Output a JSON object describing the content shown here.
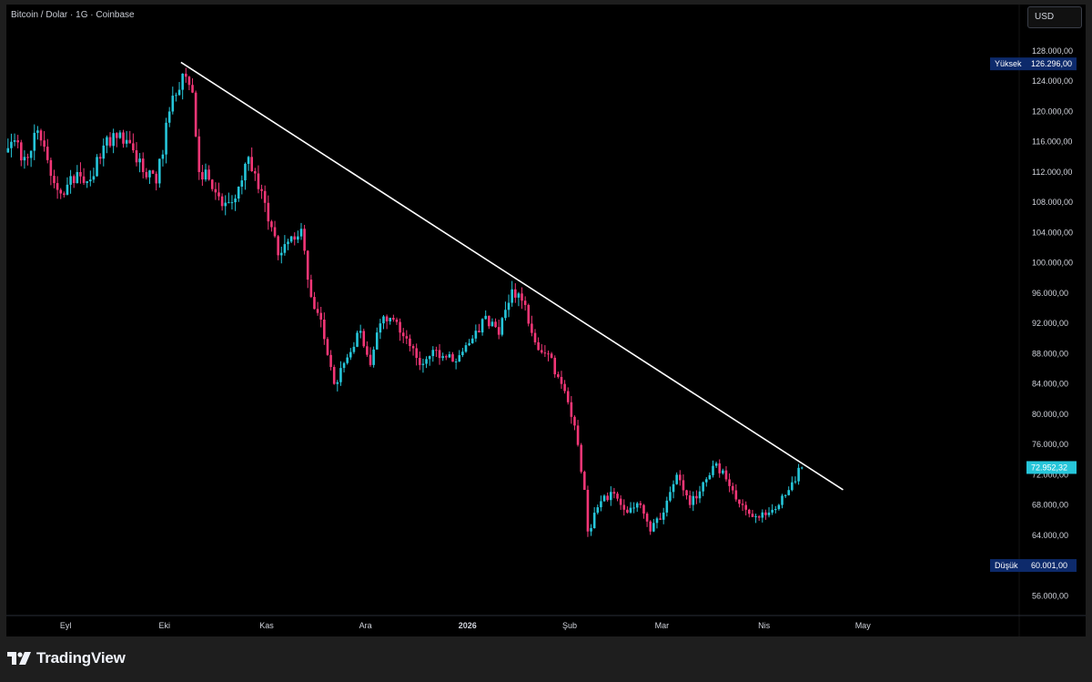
{
  "header": {
    "title": "Bitcoin / Dolar · 1G · Coinbase",
    "currency_button": "USD"
  },
  "footer": {
    "brand": "TradingView"
  },
  "colors": {
    "up": "#26c6da",
    "down": "#f23676",
    "trendline": "#ffffff",
    "last_price_tag": "#26c6da",
    "hl_tag": "#0d2a6b"
  },
  "chart_data": {
    "type": "candlestick",
    "ylim": [
      53000,
      131000
    ],
    "y_ticks": [
      "128.000,00",
      "124.000,00",
      "120.000,00",
      "116.000,00",
      "112.000,00",
      "108.000,00",
      "104.000,00",
      "100.000,00",
      "96.000,00",
      "92.000,00",
      "88.000,00",
      "84.000,00",
      "80.000,00",
      "76.000,00",
      "72.000,00",
      "68.000,00",
      "64.000,00",
      "56.000,00"
    ],
    "y_tick_values": [
      128000,
      124000,
      120000,
      116000,
      112000,
      108000,
      104000,
      100000,
      96000,
      92000,
      88000,
      84000,
      80000,
      76000,
      72000,
      68000,
      64000,
      56000
    ],
    "x_ticks": [
      "Eyl",
      "Eki",
      "Kas",
      "Ara",
      "2026",
      "Şub",
      "Mar",
      "Nis",
      "May"
    ],
    "high_tag": {
      "label": "Yüksek",
      "value_text": "126.296,00",
      "value": 126296
    },
    "low_tag": {
      "label": "Düşük",
      "value_text": "60.001,00",
      "value": 60001
    },
    "last_price": {
      "value_text": "72.952,32",
      "value": 72952.32
    },
    "trendline": {
      "start": {
        "date": "2025-10-06",
        "price": 126500
      },
      "end": {
        "date": "2026-04-25",
        "price": 70000
      }
    },
    "anchors": [
      [
        "2025-08-15",
        116000
      ],
      [
        "2025-08-19",
        114000
      ],
      [
        "2025-08-23",
        117500
      ],
      [
        "2025-08-27",
        111500
      ],
      [
        "2025-08-31",
        109000
      ],
      [
        "2025-09-04",
        112000
      ],
      [
        "2025-09-08",
        111000
      ],
      [
        "2025-09-12",
        115500
      ],
      [
        "2025-09-16",
        116500
      ],
      [
        "2025-09-20",
        115800
      ],
      [
        "2025-09-24",
        112000
      ],
      [
        "2025-09-28",
        110500
      ],
      [
        "2025-10-02",
        120000
      ],
      [
        "2025-10-06",
        125000
      ],
      [
        "2025-10-09",
        122500
      ],
      [
        "2025-10-11",
        112000
      ],
      [
        "2025-10-14",
        111000
      ],
      [
        "2025-10-18",
        107500
      ],
      [
        "2025-10-22",
        108500
      ],
      [
        "2025-10-26",
        114000
      ],
      [
        "2025-10-30",
        109500
      ],
      [
        "2025-11-04",
        101000
      ],
      [
        "2025-11-08",
        103500
      ],
      [
        "2025-11-11",
        104500
      ],
      [
        "2025-11-14",
        95500
      ],
      [
        "2025-11-17",
        92500
      ],
      [
        "2025-11-21",
        84000
      ],
      [
        "2025-11-25",
        87500
      ],
      [
        "2025-11-29",
        91000
      ],
      [
        "2025-12-02",
        86500
      ],
      [
        "2025-12-05",
        92000
      ],
      [
        "2025-12-09",
        92500
      ],
      [
        "2025-12-13",
        90000
      ],
      [
        "2025-12-17",
        86500
      ],
      [
        "2025-12-21",
        88500
      ],
      [
        "2025-12-25",
        87500
      ],
      [
        "2025-12-29",
        87800
      ],
      [
        "2026-01-02",
        90000
      ],
      [
        "2026-01-06",
        93000
      ],
      [
        "2026-01-10",
        90500
      ],
      [
        "2026-01-14",
        96500
      ],
      [
        "2026-01-17",
        95000
      ],
      [
        "2026-01-21",
        89500
      ],
      [
        "2026-01-25",
        88000
      ],
      [
        "2026-01-29",
        84000
      ],
      [
        "2026-02-02",
        78500
      ],
      [
        "2026-02-05",
        70000
      ],
      [
        "2026-02-06",
        64500
      ],
      [
        "2026-02-10",
        68500
      ],
      [
        "2026-02-14",
        69500
      ],
      [
        "2026-02-18",
        67000
      ],
      [
        "2026-02-22",
        68000
      ],
      [
        "2026-02-25",
        64500
      ],
      [
        "2026-03-01",
        67000
      ],
      [
        "2026-03-05",
        72000
      ],
      [
        "2026-03-09",
        68000
      ],
      [
        "2026-03-13",
        71000
      ],
      [
        "2026-03-17",
        73500
      ],
      [
        "2026-03-21",
        70500
      ],
      [
        "2026-03-25",
        68000
      ],
      [
        "2026-03-29",
        66500
      ],
      [
        "2026-04-02",
        67000
      ],
      [
        "2026-04-05",
        68000
      ],
      [
        "2026-04-09",
        71000
      ],
      [
        "2026-04-12",
        72900
      ]
    ]
  }
}
